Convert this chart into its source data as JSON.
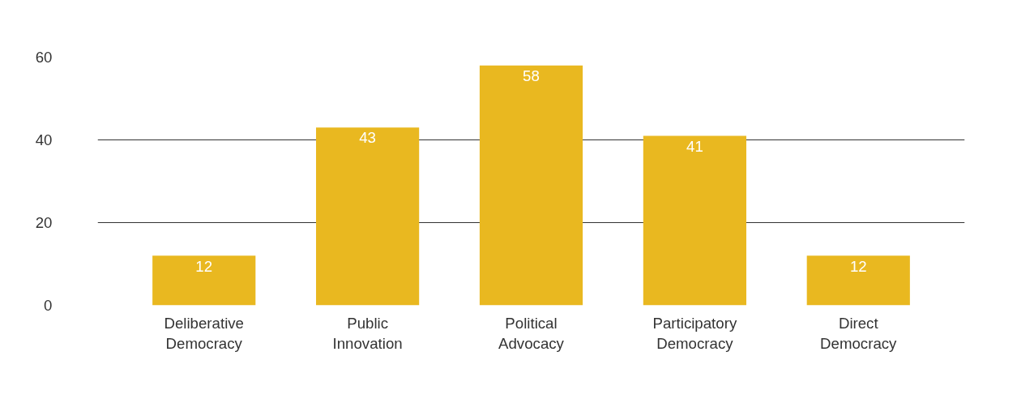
{
  "chart_data": {
    "type": "bar",
    "categories": [
      "Deliberative\nDemocracy",
      "Public\nInnovation",
      "Political\nAdvocacy",
      "Participatory\nDemocracy",
      "Direct\nDemocracy"
    ],
    "values": [
      12,
      43,
      58,
      41,
      12
    ],
    "color": "#e9b820",
    "ylim": [
      0,
      60
    ],
    "yticks": [
      0,
      20,
      40,
      60
    ],
    "grid": "y",
    "data_labels": true
  }
}
